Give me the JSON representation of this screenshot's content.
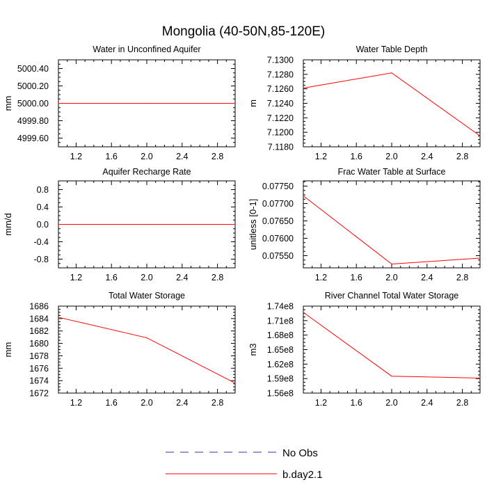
{
  "figure": {
    "title": "Mongolia (40-50N,85-120E)",
    "legend": [
      {
        "label": "No Obs",
        "color": "#3333aa",
        "style": "dashed"
      },
      {
        "label": "b.day2.1",
        "color": "#ff0000",
        "style": "solid"
      }
    ]
  },
  "chart_data": [
    {
      "type": "line",
      "title": "Water in Unconfined Aquifer",
      "ylabel": "mm",
      "xlim": [
        1.0,
        3.0
      ],
      "ylim": [
        4999.5,
        5000.5
      ],
      "x_ticks": [
        "1.2",
        "1.6",
        "2.0",
        "2.4",
        "2.8"
      ],
      "y_ticks": [
        "4999.60",
        "4999.80",
        "5000.00",
        "5000.20",
        "5000.40"
      ],
      "series": [
        {
          "name": "b.day2.1",
          "x": [
            1,
            2,
            3
          ],
          "values": [
            5000.0,
            5000.0,
            5000.0
          ]
        }
      ]
    },
    {
      "type": "line",
      "title": "Water Table Depth",
      "ylabel": "m",
      "xlim": [
        1.0,
        3.0
      ],
      "ylim": [
        7.118,
        7.13
      ],
      "x_ticks": [
        "1.2",
        "1.6",
        "2.0",
        "2.4",
        "2.8"
      ],
      "y_ticks": [
        "7.1180",
        "7.1200",
        "7.1220",
        "7.1240",
        "7.1260",
        "7.1280",
        "7.1300"
      ],
      "series": [
        {
          "name": "b.day2.1",
          "x": [
            1,
            2,
            3
          ],
          "values": [
            7.1261,
            7.1282,
            7.1195
          ]
        }
      ]
    },
    {
      "type": "line",
      "title": "Aquifer Recharge Rate",
      "ylabel": "mm/d",
      "xlim": [
        1.0,
        3.0
      ],
      "ylim": [
        -1.0,
        1.0
      ],
      "x_ticks": [
        "1.2",
        "1.6",
        "2.0",
        "2.4",
        "2.8"
      ],
      "y_ticks": [
        "-0.8",
        "-0.4",
        "0.0",
        "0.4",
        "0.8"
      ],
      "series": [
        {
          "name": "b.day2.1",
          "x": [
            1,
            2,
            3
          ],
          "values": [
            0.0,
            0.0,
            0.0
          ]
        }
      ]
    },
    {
      "type": "line",
      "title": "Frac Water Table at Surface",
      "ylabel": "unitless [0-1]",
      "xlim": [
        1.0,
        3.0
      ],
      "ylim": [
        0.07515,
        0.07765
      ],
      "x_ticks": [
        "1.2",
        "1.6",
        "2.0",
        "2.4",
        "2.8"
      ],
      "y_ticks": [
        "0.07550",
        "0.07600",
        "0.07650",
        "0.07700",
        "0.07750"
      ],
      "series": [
        {
          "name": "b.day2.1",
          "x": [
            1,
            2,
            3
          ],
          "values": [
            0.07722,
            0.07526,
            0.07543
          ]
        }
      ]
    },
    {
      "type": "line",
      "title": "Total Water Storage",
      "ylabel": "mm",
      "xlim": [
        1.0,
        3.0
      ],
      "ylim": [
        1672,
        1686
      ],
      "x_ticks": [
        "1.2",
        "1.6",
        "2.0",
        "2.4",
        "2.8"
      ],
      "y_ticks": [
        "1672",
        "1674",
        "1676",
        "1678",
        "1680",
        "1682",
        "1684",
        "1686"
      ],
      "series": [
        {
          "name": "b.day2.1",
          "x": [
            1,
            2,
            3
          ],
          "values": [
            1684.2,
            1680.9,
            1673.6
          ]
        }
      ]
    },
    {
      "type": "line",
      "title": "River Channel Total Water Storage",
      "ylabel": "m3",
      "xlim": [
        1.0,
        3.0
      ],
      "ylim": [
        156000000,
        174000000
      ],
      "x_ticks": [
        "1.2",
        "1.6",
        "2.0",
        "2.4",
        "2.8"
      ],
      "y_ticks": [
        "1.56e8",
        "1.59e8",
        "1.62e8",
        "1.65e8",
        "1.68e8",
        "1.71e8",
        "1.74e8"
      ],
      "series": [
        {
          "name": "b.day2.1",
          "x": [
            1,
            2,
            3
          ],
          "values": [
            172700000,
            159500000,
            159100000
          ]
        }
      ]
    }
  ]
}
